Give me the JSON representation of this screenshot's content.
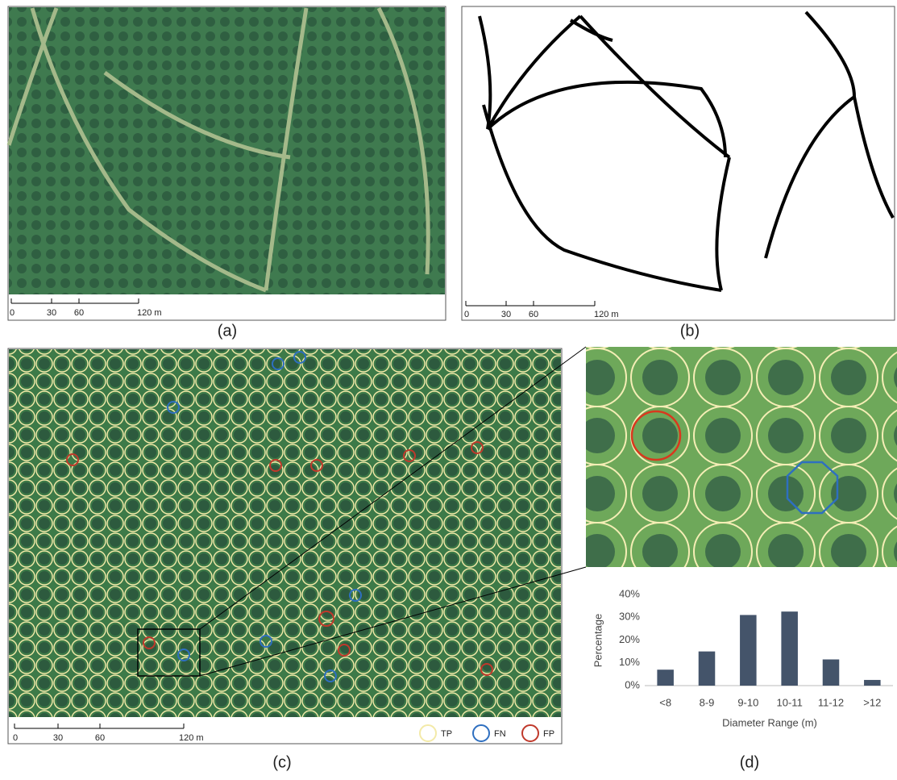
{
  "panels": {
    "a": {
      "label": "(a)",
      "scale_bar": [
        "0",
        "30",
        "60",
        "120 m"
      ]
    },
    "b": {
      "label": "(b)",
      "scale_bar": [
        "0",
        "30",
        "60",
        "120 m"
      ]
    },
    "c": {
      "label": "(c)",
      "scale_bar": [
        "0",
        "30",
        "60",
        "120 m"
      ],
      "legend": [
        "TP",
        "FN",
        "FP"
      ]
    },
    "d": {
      "label": "(d)"
    }
  },
  "chart_data": {
    "type": "bar",
    "x_label": "Diameter Range (m)",
    "y_label": "Percentage",
    "categories": [
      "<8",
      "8-9",
      "9-10",
      "10-11",
      "11-12",
      ">12"
    ],
    "values": [
      7,
      15,
      31,
      32.5,
      11.5,
      2.5
    ],
    "color": "#44546a",
    "ylim": [
      0,
      40
    ],
    "yticks": [
      {
        "value": 0,
        "label": "0%"
      },
      {
        "value": 10,
        "label": "10%"
      },
      {
        "value": 20,
        "label": "20%"
      },
      {
        "value": 30,
        "label": "30%"
      },
      {
        "value": 40,
        "label": "40%"
      }
    ],
    "grid": false
  }
}
